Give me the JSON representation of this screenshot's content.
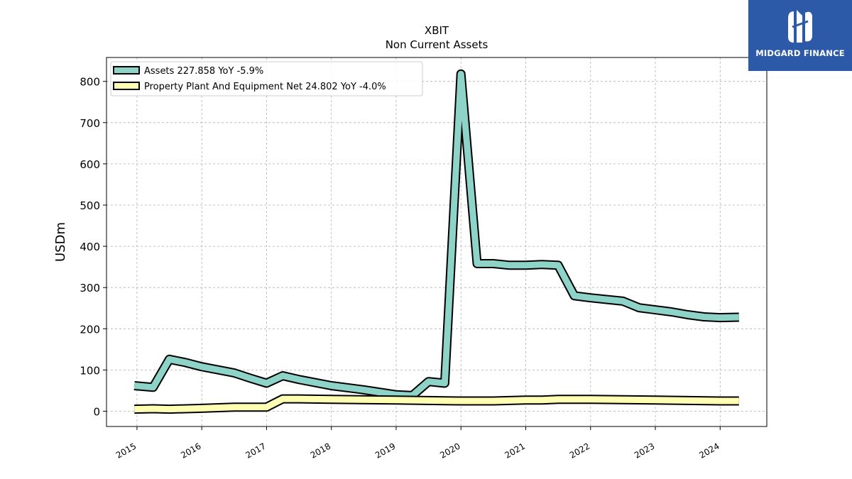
{
  "brand": {
    "name": "MIDGARD FINANCE",
    "color": "#2d5aa8",
    "icon": "midgard-logo-icon"
  },
  "chart_data": {
    "type": "line",
    "title": "XBIT",
    "subtitle": "Non Current  Assets",
    "ylabel": "USDm",
    "xlabel": "",
    "ylim": [
      -37,
      858
    ],
    "xlim": [
      2014.53,
      2024.72
    ],
    "yticks": [
      0,
      100,
      200,
      300,
      400,
      500,
      600,
      700,
      800
    ],
    "xticks": [
      2015,
      2016,
      2017,
      2018,
      2019,
      2020,
      2021,
      2022,
      2023,
      2024
    ],
    "grid": true,
    "legend_position": "top-left",
    "series": [
      {
        "name": "Assets  227.858 YoY -5.9%",
        "color": "#8dd3c7",
        "x": [
          2014.96,
          2015.25,
          2015.5,
          2015.75,
          2016.0,
          2016.5,
          2016.75,
          2017.0,
          2017.25,
          2017.5,
          2018.0,
          2018.5,
          2019.0,
          2019.25,
          2019.5,
          2019.75,
          2020.0,
          2020.25,
          2020.5,
          2020.75,
          2021.0,
          2021.25,
          2021.5,
          2021.75,
          2022.0,
          2022.5,
          2022.75,
          2023.0,
          2023.25,
          2023.5,
          2023.75,
          2024.0,
          2024.29
        ],
        "y": [
          62,
          58,
          126,
          118,
          108,
          93,
          80,
          68,
          86,
          77,
          62,
          52,
          40,
          38,
          72,
          68,
          818,
          358,
          358,
          354,
          354,
          356,
          354,
          280,
          275,
          267,
          251,
          246,
          241,
          234,
          229,
          227,
          228
        ]
      },
      {
        "name": "Property Plant And Equipment Net  24.802 YoY -4.0%",
        "color": "#ffffb3",
        "x": [
          2014.96,
          2015.25,
          2015.5,
          2016.0,
          2016.5,
          2017.0,
          2017.25,
          2017.5,
          2018.0,
          2019.0,
          2020.0,
          2020.5,
          2021.0,
          2021.25,
          2021.5,
          2022.0,
          2022.5,
          2023.0,
          2023.5,
          2024.0,
          2024.29
        ],
        "y": [
          5,
          6,
          5,
          7,
          10,
          10,
          30,
          30,
          29,
          27,
          25,
          25,
          27,
          27,
          29,
          29,
          28,
          27,
          26,
          25,
          25
        ]
      }
    ]
  }
}
